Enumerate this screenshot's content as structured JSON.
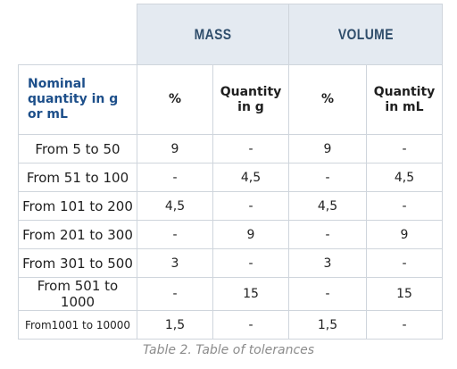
{
  "table": {
    "groups": {
      "mass": "MASS",
      "volume": "VOLUME"
    },
    "corner_label": "Nominal quantity in g or mL",
    "subheaders": {
      "mass_percent": "%",
      "mass_quantity": "Quantity in g",
      "volume_percent": "%",
      "volume_quantity": "Quantity in mL"
    },
    "rows": [
      {
        "label": "From 5 to 50",
        "mass_percent": "9",
        "mass_quantity": "-",
        "volume_percent": "9",
        "volume_quantity": "-"
      },
      {
        "label": "From 51 to 100",
        "mass_percent": "-",
        "mass_quantity": "4,5",
        "volume_percent": "-",
        "volume_quantity": "4,5"
      },
      {
        "label": "From 101 to 200",
        "mass_percent": "4,5",
        "mass_quantity": "-",
        "volume_percent": "4,5",
        "volume_quantity": "-"
      },
      {
        "label": "From 201 to 300",
        "mass_percent": "-",
        "mass_quantity": "9",
        "volume_percent": "-",
        "volume_quantity": "9"
      },
      {
        "label": "From 301 to 500",
        "mass_percent": "3",
        "mass_quantity": "-",
        "volume_percent": "3",
        "volume_quantity": "-"
      },
      {
        "label": "From 501 to 1000",
        "mass_percent": "-",
        "mass_quantity": "15",
        "volume_percent": "-",
        "volume_quantity": "15"
      },
      {
        "label": "From1001 to 10000",
        "mass_percent": "1,5",
        "mass_quantity": "-",
        "volume_percent": "1,5",
        "volume_quantity": "-"
      }
    ]
  },
  "caption": "Table 2. Table of tolerances",
  "colors": {
    "header_background": "#e4eaf1",
    "header_text": "#2f4d6b",
    "corner_label_text": "#1d4f8a",
    "border": "#cfd5dc",
    "caption_text": "#8c8c8c"
  }
}
